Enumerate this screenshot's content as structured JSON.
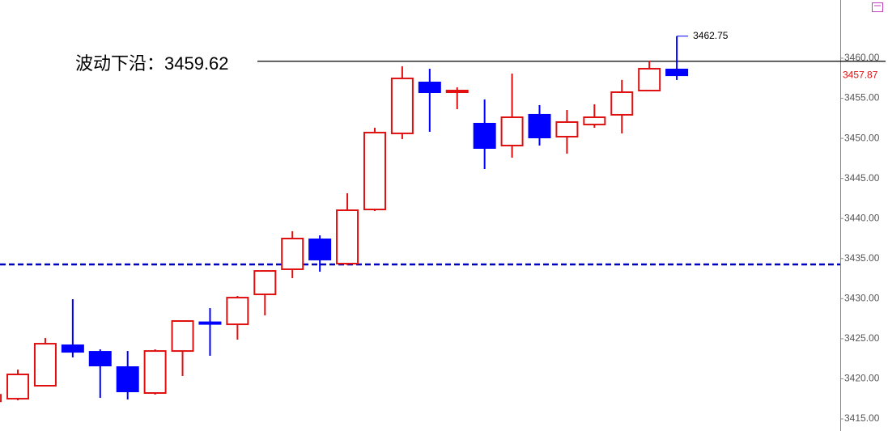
{
  "chart_data": {
    "type": "candlestick",
    "ohlc": {
      "open": [
        3417.2,
        3417.52,
        3419.14,
        3424.18,
        3423.37,
        3421.46,
        3418.23,
        3423.47,
        3427.05,
        3426.8,
        3430.54,
        3433.67,
        3437.4,
        3434.37,
        3441.13,
        3450.62,
        3456.97,
        3455.76,
        3451.83,
        3449.1,
        3452.94,
        3450.21,
        3451.73,
        3452.94,
        3455.96,
        3458.59
      ],
      "high": [
        3418.0,
        3421.15,
        3425.09,
        3429.93,
        3423.68,
        3423.47,
        3423.68,
        3427.31,
        3428.82,
        3430.34,
        3433.46,
        3438.41,
        3437.9,
        3443.15,
        3451.32,
        3458.99,
        3458.69,
        3456.37,
        3454.85,
        3458.08,
        3454.15,
        3453.54,
        3454.25,
        3457.28,
        3459.7,
        3462.75
      ],
      "low": [
        3417.2,
        3417.32,
        3419.04,
        3422.67,
        3417.62,
        3417.42,
        3418.03,
        3420.35,
        3422.87,
        3424.89,
        3427.91,
        3432.56,
        3433.36,
        3434.17,
        3440.93,
        3449.91,
        3450.82,
        3453.64,
        3446.18,
        3447.59,
        3449.1,
        3448.09,
        3451.32,
        3450.62,
        3455.86,
        3457.28
      ],
      "close": [
        3418.0,
        3420.55,
        3424.38,
        3423.37,
        3421.66,
        3418.43,
        3423.47,
        3427.21,
        3427.0,
        3430.13,
        3433.46,
        3437.5,
        3434.88,
        3441.03,
        3450.72,
        3457.48,
        3455.76,
        3455.96,
        3448.8,
        3452.63,
        3450.11,
        3452.03,
        3452.63,
        3455.76,
        3458.69,
        3457.87
      ]
    },
    "up_color": "#e01010",
    "down_color": "#0000ff",
    "ylim": [
      3413.49,
      3467.26
    ],
    "yticks": [
      {
        "value": 3415,
        "label": "3415.00"
      },
      {
        "value": 3420,
        "label": "3420.00"
      },
      {
        "value": 3425,
        "label": "3425.00"
      },
      {
        "value": 3430,
        "label": "3430.00"
      },
      {
        "value": 3435,
        "label": "3435.00"
      },
      {
        "value": 3440,
        "label": "3440.00"
      },
      {
        "value": 3445,
        "label": "3445.00"
      },
      {
        "value": 3450,
        "label": "3450.00"
      },
      {
        "value": 3455,
        "label": "3455.00"
      },
      {
        "value": 3460,
        "label": "3460.00"
      }
    ],
    "level_line": {
      "label": "波动下沿：3459.62",
      "value": 3459.62,
      "color": "#000000"
    },
    "dashed_line": {
      "value": 3434.27,
      "color": "#0000c0"
    }
  }
}
